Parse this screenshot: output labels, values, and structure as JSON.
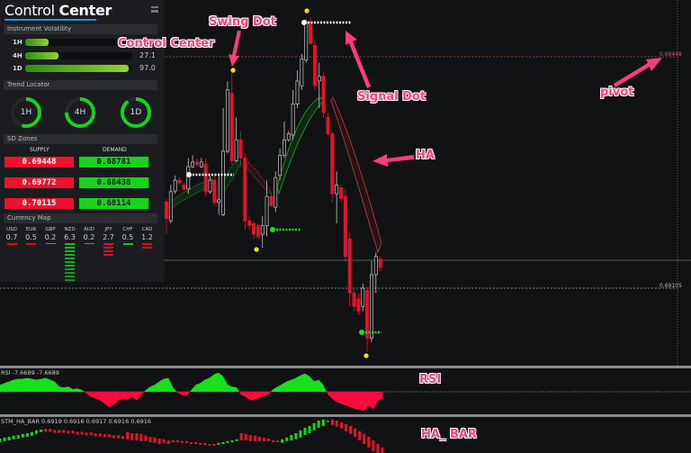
{
  "panel": {
    "title_light": "Control",
    "title_bold": "Center",
    "volatility": {
      "header": "Instrument Volatility",
      "rows": [
        {
          "label": "1H",
          "fill": 0.22
        },
        {
          "label": "4H",
          "value": "27.1",
          "fill": 0.31
        },
        {
          "label": "1D",
          "value": "97.0",
          "fill": 0.97
        }
      ]
    },
    "trend": {
      "header": "Trend Locator",
      "rings": [
        {
          "label": "1H",
          "fill": 0.55
        },
        {
          "label": "4H",
          "fill": 0.75
        },
        {
          "label": "1D",
          "fill": 0.9
        }
      ]
    },
    "sd_zones": {
      "header": "SD Zones",
      "supply_label": "SUPPLY",
      "demand_label": "DEMAND",
      "supply": [
        "0.69448",
        "0.69772",
        "0.70115"
      ],
      "demand": [
        "0.68781",
        "0.68438",
        "0.68114"
      ]
    },
    "currency_map": {
      "header": "Currency Map",
      "items": [
        {
          "code": "USD",
          "value": "0.7",
          "bars": 1,
          "color": "red"
        },
        {
          "code": "EUR",
          "value": "0.5",
          "bars": 1,
          "color": "red"
        },
        {
          "code": "GBP",
          "value": "0.2",
          "bars": 1,
          "color": "green-thin"
        },
        {
          "code": "NZD",
          "value": "6.3",
          "bars": 11,
          "color": "green"
        },
        {
          "code": "AUD",
          "value": "0.2",
          "bars": 1,
          "color": "green-thin"
        },
        {
          "code": "JPY",
          "value": "2.7",
          "bars": 4,
          "color": "red"
        },
        {
          "code": "CHF",
          "value": "0.5",
          "bars": 1,
          "color": "green"
        },
        {
          "code": "CAD",
          "value": "1.2",
          "bars": 2,
          "color": "red"
        }
      ]
    }
  },
  "annotations": {
    "control_center": "Control Center",
    "swing_dot": "Swing Dot",
    "signal_dot": "Signal Dot",
    "ha": "HA",
    "pivot": "pivot",
    "rsi": "RSI",
    "ha_bar": "HA_ BAR"
  },
  "price_levels": {
    "pivot": "0.69448",
    "lower": "0.69105"
  },
  "indicators": {
    "rsi_label": "RSI -7.6689 -7.6689",
    "ha_bar_label": "STM_HA_BAR 0.6919 0.6916 0.6917 0.6916 0.6916"
  },
  "colors": {
    "bull": "#19d21c",
    "bear": "#f0102e",
    "swing_dot": "#f5e000",
    "accent": "#1e9ad6",
    "annotation": "#ff3d78"
  },
  "chart_data": [
    {
      "type": "candlestick",
      "labeled_levels": [
        0.69448,
        0.69105
      ],
      "ohlc": [
        [
          0.69233,
          0.69238,
          0.69185,
          0.69208
        ],
        [
          0.69205,
          0.69258,
          0.69201,
          0.69248
        ],
        [
          0.69249,
          0.69272,
          0.69245,
          0.69265
        ],
        [
          0.69265,
          0.69269,
          0.69258,
          0.69261
        ],
        [
          0.69258,
          0.69261,
          0.69249,
          0.69252
        ],
        [
          0.69252,
          0.69298,
          0.69245,
          0.69285
        ],
        [
          0.69285,
          0.69302,
          0.69283,
          0.69292
        ],
        [
          0.69292,
          0.69298,
          0.69285,
          0.69288
        ],
        [
          0.69285,
          0.69298,
          0.69283,
          0.69292
        ],
        [
          0.69289,
          0.69298,
          0.69241,
          0.69248
        ],
        [
          0.69248,
          0.69272,
          0.69245,
          0.69265
        ],
        [
          0.69265,
          0.69272,
          0.69228,
          0.69232
        ],
        [
          0.69232,
          0.69272,
          0.69214,
          0.69236
        ],
        [
          0.69214,
          0.69372,
          0.69212,
          0.69308
        ],
        [
          0.69308,
          0.69412,
          0.69305,
          0.69399
        ],
        [
          0.69394,
          0.69425,
          0.69289,
          0.69294
        ],
        [
          0.69294,
          0.69358,
          0.69292,
          0.69325
        ],
        [
          0.69325,
          0.69338,
          0.69285,
          0.69298
        ],
        [
          0.69298,
          0.69305,
          0.69192,
          0.69205
        ],
        [
          0.69205,
          0.69212,
          0.69192,
          0.69198
        ],
        [
          0.69201,
          0.69205,
          0.69178,
          0.69185
        ],
        [
          0.69198,
          0.69201,
          0.69178,
          0.69182
        ],
        [
          0.69185,
          0.69212,
          0.69165,
          0.69198
        ],
        [
          0.69198,
          0.69265,
          0.69182,
          0.69241
        ],
        [
          0.69241,
          0.69245,
          0.69225,
          0.69228
        ],
        [
          0.69225,
          0.69278,
          0.69218,
          0.69269
        ],
        [
          0.69272,
          0.69312,
          0.69265,
          0.69302
        ],
        [
          0.69302,
          0.69352,
          0.69298,
          0.69325
        ],
        [
          0.69325,
          0.69338,
          0.69322,
          0.69334
        ],
        [
          0.69332,
          0.69399,
          0.69325,
          0.69378
        ],
        [
          0.69378,
          0.69428,
          0.69372,
          0.69412
        ],
        [
          0.69405,
          0.69452,
          0.69399,
          0.69445
        ],
        [
          0.69443,
          0.69503,
          0.69439,
          0.69499
        ],
        [
          0.69499,
          0.69505,
          0.69465,
          0.69468
        ],
        [
          0.69465,
          0.69472,
          0.69399,
          0.69405
        ],
        [
          0.69412,
          0.69439,
          0.69372,
          0.69419
        ],
        [
          0.69419,
          0.69425,
          0.69358,
          0.69365
        ],
        [
          0.69358,
          0.69365,
          0.6933,
          0.69334
        ],
        [
          0.69334,
          0.69338,
          0.69232,
          0.69245
        ],
        [
          0.69245,
          0.69278,
          0.69201,
          0.69258
        ],
        [
          0.69254,
          0.69258,
          0.69232,
          0.69238
        ],
        [
          0.69241,
          0.69252,
          0.69145,
          0.69152
        ],
        [
          0.69178,
          0.69188,
          0.69078,
          0.69098
        ],
        [
          0.69098,
          0.69105,
          0.69071,
          0.69078
        ],
        [
          0.69089,
          0.69098,
          0.69065,
          0.69071
        ],
        [
          0.69078,
          0.69112,
          0.69071,
          0.69105
        ],
        [
          0.69102,
          0.69108,
          0.69011,
          0.69031
        ],
        [
          0.69031,
          0.69145,
          0.69025,
          0.69125
        ],
        [
          0.69125,
          0.69158,
          0.69098,
          0.69152
        ],
        [
          0.69148,
          0.69152,
          0.6913,
          0.69136
        ]
      ]
    },
    {
      "type": "area",
      "name": "RSI",
      "ylim": [
        -25,
        25
      ],
      "values": [
        8,
        10,
        12,
        14,
        15,
        15,
        16,
        15,
        14,
        15,
        16,
        14,
        12,
        6,
        5,
        6,
        3,
        4,
        2,
        -2,
        -6,
        -8,
        -10,
        -14,
        -18,
        -15,
        -10,
        -8,
        -9,
        -6,
        -10,
        -4,
        2,
        6,
        8,
        12,
        15,
        16,
        5,
        -1,
        -4,
        -5,
        2,
        8,
        10,
        14,
        16,
        20,
        22,
        18,
        8,
        6,
        5,
        -4,
        -6,
        -10,
        -9,
        -7,
        -5,
        -3,
        3,
        6,
        9,
        12,
        14,
        16,
        19,
        21,
        18,
        12,
        14,
        8,
        -3,
        -8,
        -12,
        -14,
        -16,
        -18,
        -20,
        -21,
        -22,
        -16,
        -20,
        -10,
        -8
      ]
    },
    {
      "type": "bar",
      "name": "STM_HA_BAR",
      "open_close": [
        [
          0.69135,
          0.69145
        ],
        [
          0.69138,
          0.69148
        ],
        [
          0.6914,
          0.6915
        ],
        [
          0.69143,
          0.69153
        ],
        [
          0.69145,
          0.69155
        ],
        [
          0.69148,
          0.69158
        ],
        [
          0.6915,
          0.6916
        ],
        [
          0.69153,
          0.69163
        ],
        [
          0.69158,
          0.69168
        ],
        [
          0.69163,
          0.6917
        ],
        [
          0.69172,
          0.69164
        ],
        [
          0.69172,
          0.69164
        ],
        [
          0.69169,
          0.69161
        ],
        [
          0.69169,
          0.69161
        ],
        [
          0.69169,
          0.69161
        ],
        [
          0.69167,
          0.69159
        ],
        [
          0.69167,
          0.69159
        ],
        [
          0.69164,
          0.69156
        ],
        [
          0.69164,
          0.69156
        ],
        [
          0.69162,
          0.69154
        ],
        [
          0.69162,
          0.69154
        ],
        [
          0.69159,
          0.69151
        ],
        [
          0.69159,
          0.69151
        ],
        [
          0.69157,
          0.69149
        ],
        [
          0.69157,
          0.69149
        ],
        [
          0.69154,
          0.69146
        ],
        [
          0.69154,
          0.69146
        ],
        [
          0.69152,
          0.69144
        ],
        [
          0.69163,
          0.69143
        ],
        [
          0.6916,
          0.6914
        ],
        [
          0.6916,
          0.6914
        ],
        [
          0.69158,
          0.69138
        ],
        [
          0.69153,
          0.69138
        ],
        [
          0.6915,
          0.69135
        ],
        [
          0.69148,
          0.69133
        ],
        [
          0.69145,
          0.6913
        ],
        [
          0.69143,
          0.69133
        ],
        [
          0.6914,
          0.6913
        ],
        [
          0.6914,
          0.69135
        ],
        [
          0.6914,
          0.69135
        ],
        [
          0.69138,
          0.69133
        ],
        [
          0.69138,
          0.69133
        ],
        [
          0.69135,
          0.6913
        ],
        [
          0.69135,
          0.6913
        ],
        [
          0.69133,
          0.69128
        ],
        [
          0.69133,
          0.69128
        ],
        [
          0.6913,
          0.69125
        ],
        [
          0.6913,
          0.69125
        ],
        [
          0.69128,
          0.69133
        ],
        [
          0.6913,
          0.69135
        ],
        [
          0.69133,
          0.69138
        ],
        [
          0.69135,
          0.6914
        ],
        [
          0.69138,
          0.69143
        ],
        [
          0.6916,
          0.6914
        ],
        [
          0.69158,
          0.6914
        ],
        [
          0.69155,
          0.69138
        ],
        [
          0.69153,
          0.69138
        ],
        [
          0.6915,
          0.69138
        ],
        [
          0.69148,
          0.69138
        ],
        [
          0.69145,
          0.69138
        ],
        [
          0.6914,
          0.69135
        ],
        [
          0.6914,
          0.69135
        ],
        [
          0.69133,
          0.69143
        ],
        [
          0.69138,
          0.69148
        ],
        [
          0.6914,
          0.69155
        ],
        [
          0.69143,
          0.6916
        ],
        [
          0.69148,
          0.69168
        ],
        [
          0.69155,
          0.69175
        ],
        [
          0.6916,
          0.6918
        ],
        [
          0.69168,
          0.69188
        ],
        [
          0.69175,
          0.69195
        ],
        [
          0.6918,
          0.69198
        ],
        [
          0.69193,
          0.69195
        ],
        [
          0.69198,
          0.69183
        ],
        [
          0.69195,
          0.69178
        ],
        [
          0.6919,
          0.69173
        ],
        [
          0.69185,
          0.69165
        ],
        [
          0.6918,
          0.69158
        ],
        [
          0.69173,
          0.6915
        ],
        [
          0.69165,
          0.6914
        ],
        [
          0.69158,
          0.6913
        ],
        [
          0.6915,
          0.6912
        ],
        [
          0.6914,
          0.6911
        ],
        [
          0.6913,
          0.691
        ],
        [
          0.6912,
          0.6909
        ]
      ]
    }
  ]
}
